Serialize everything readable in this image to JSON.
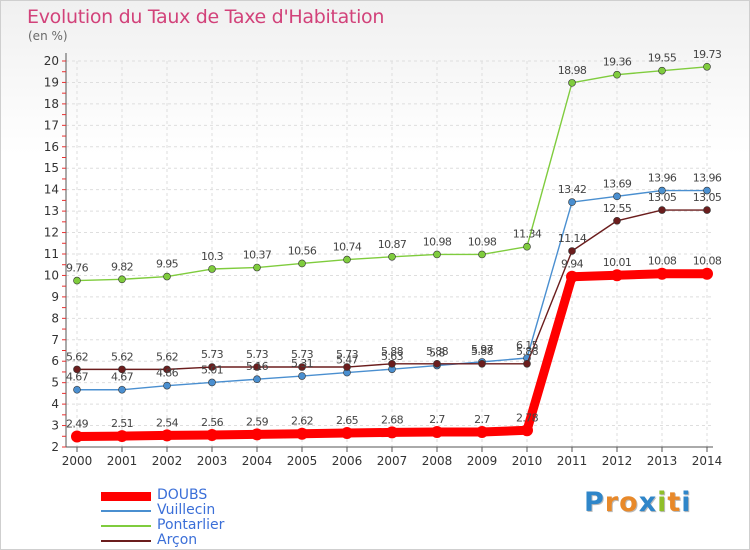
{
  "title": "Evolution du Taux de Taxe d'Habitation",
  "unit": "(en %)",
  "logo": {
    "text": "Proxiti",
    "letters": [
      "P",
      "r",
      "o",
      "x",
      "i",
      "t",
      "i"
    ],
    "colors": [
      "#2f86c9",
      "#e8892a",
      "#e8892a",
      "#2f86c9",
      "#8fbf2a",
      "#e8892a",
      "#2f86c9"
    ]
  },
  "chart_data": {
    "type": "line",
    "title": "Evolution du Taux de Taxe d'Habitation",
    "ylabel": "(en %)",
    "xlabel": "",
    "x": [
      "2000",
      "2001",
      "2002",
      "2003",
      "2004",
      "2005",
      "2006",
      "2007",
      "2008",
      "2009",
      "2010",
      "2011",
      "2012",
      "2013",
      "2014"
    ],
    "ylim": [
      2,
      20
    ],
    "yticks": [
      "2",
      "3",
      "4",
      "5",
      "6",
      "7",
      "8",
      "9",
      "10",
      "11",
      "12",
      "13",
      "14",
      "15",
      "16",
      "17",
      "18",
      "19",
      "20"
    ],
    "grid": "dashed",
    "legend_position": "bottom-left",
    "series": [
      {
        "name": "DOUBS",
        "color": "#ff0000",
        "values": [
          2.49,
          2.51,
          2.54,
          2.56,
          2.59,
          2.62,
          2.65,
          2.68,
          2.7,
          2.7,
          2.78,
          9.94,
          10.01,
          10.08,
          10.08
        ],
        "labels": [
          "2.49",
          "2.51",
          "2.54",
          "2.56",
          "2.59",
          "2.62",
          "2.65",
          "2.68",
          "2.7",
          "2.7",
          "2.78",
          "9.94",
          "10.01",
          "10.08",
          "10.08"
        ]
      },
      {
        "name": "Vuillecin",
        "color": "#4a8fd0",
        "values": [
          4.67,
          4.67,
          4.86,
          5.01,
          5.16,
          5.31,
          5.47,
          5.63,
          5.8,
          5.97,
          6.15,
          13.42,
          13.69,
          13.96,
          13.96
        ],
        "labels": [
          "4.67",
          "4.67",
          "4.86",
          "5.01",
          "5.16",
          "5.31",
          "5.47",
          "5.63",
          "5.8",
          "5.97",
          "6.15",
          "13.42",
          "13.69",
          "13.96",
          "13.96"
        ]
      },
      {
        "name": "Pontarlier",
        "color": "#7fcc3d",
        "values": [
          9.76,
          9.82,
          9.95,
          10.3,
          10.37,
          10.56,
          10.74,
          10.87,
          10.98,
          10.98,
          11.34,
          18.98,
          19.36,
          19.55,
          19.73
        ],
        "labels": [
          "9.76",
          "9.82",
          "9.95",
          "10.3",
          "10.37",
          "10.56",
          "10.74",
          "10.87",
          "10.98",
          "10.98",
          "11.34",
          "18.98",
          "19.36",
          "19.55",
          "19.73"
        ]
      },
      {
        "name": "Arçon",
        "color": "#6b1d1d",
        "values": [
          5.62,
          5.62,
          5.62,
          5.73,
          5.73,
          5.73,
          5.73,
          5.88,
          5.88,
          5.88,
          5.88,
          11.14,
          12.55,
          13.05,
          13.05
        ],
        "labels": [
          "5.62",
          "5.62",
          "5.62",
          "5.73",
          "5.73",
          "5.73",
          "5.73",
          "5.88",
          "5.88",
          "5.88",
          "5.88",
          "11.14",
          "12.55",
          "13.05",
          "13.05"
        ]
      }
    ]
  }
}
